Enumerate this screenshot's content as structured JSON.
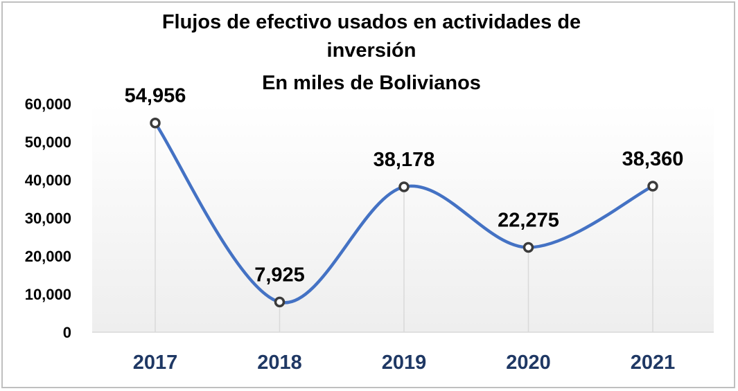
{
  "chart_data": {
    "type": "line",
    "smooth": true,
    "title_lines": [
      "Flujos  de efectivo usados  en actividades  de",
      "inversión",
      "En miles de Bolivianos"
    ],
    "categories": [
      "2017",
      "2018",
      "2019",
      "2020",
      "2021"
    ],
    "series": [
      {
        "values": [
          54956,
          7925,
          38178,
          22275,
          38360
        ],
        "data_labels": [
          "54,956",
          "7,925",
          "38,178",
          "22,275",
          "38,360"
        ]
      }
    ],
    "y_ticks": [
      "0",
      "10,000",
      "20,000",
      "30,000",
      "40,000",
      "50,000",
      "60,000"
    ],
    "ylim": [
      0,
      60000
    ],
    "xlabel": "",
    "ylabel": "",
    "gridlines": "vertical drop lines",
    "legend": "none",
    "colors": {
      "line": "#4472c4",
      "marker_fill": "#ffffff",
      "marker_stroke": "#3b3b3b",
      "x_tick_text": "#1f3864",
      "drop_line": "#d9d9d9",
      "plot_bg_bottom": "#eeeeee",
      "frame": "#bfbfbf"
    }
  }
}
